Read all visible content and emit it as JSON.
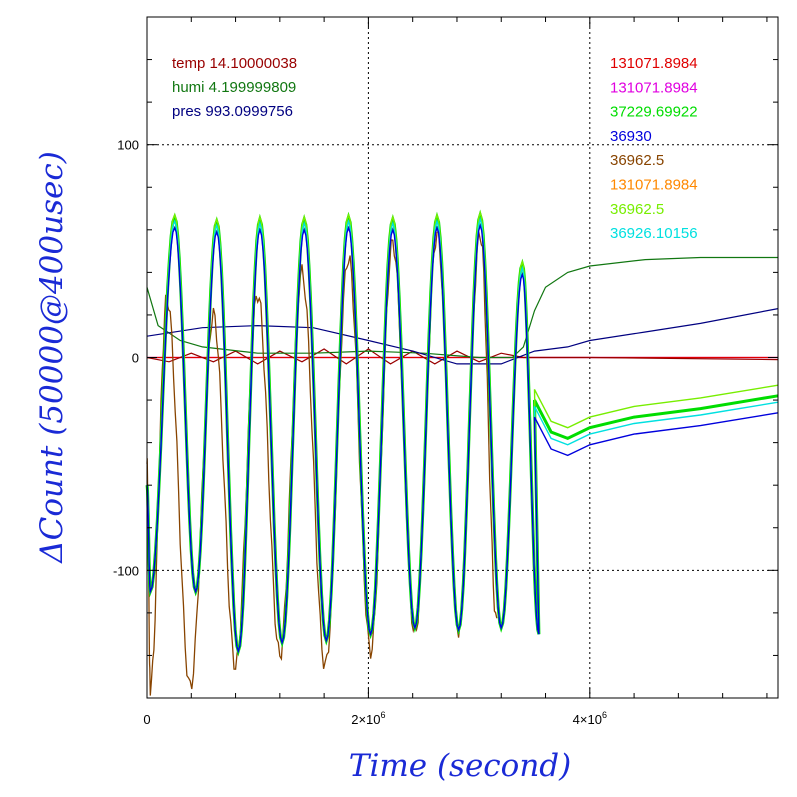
{
  "chart_data": {
    "type": "line",
    "xlabel": "Time (second)",
    "ylabel": "ΔCount (50000@400usec)",
    "xlim": [
      0,
      5700000
    ],
    "ylim": [
      -160,
      160
    ],
    "x_ticks": [
      {
        "value": 0,
        "base": "0",
        "exp": ""
      },
      {
        "value": 2000000,
        "base": "2×10",
        "exp": "6"
      },
      {
        "value": 4000000,
        "base": "4×10",
        "exp": "6"
      }
    ],
    "y_ticks": [
      {
        "value": 100,
        "label": "100"
      },
      {
        "value": 0,
        "label": "0"
      },
      {
        "value": -100,
        "label": "-100"
      }
    ],
    "grid": {
      "x": [
        2000000,
        4000000
      ],
      "y": [
        100,
        -100
      ]
    },
    "env_legend": [
      {
        "label": "temp 14.10000038",
        "color": "#990000"
      },
      {
        "label": "humi 4.199999809",
        "color": "#117711"
      },
      {
        "label": "pres 993.0999756",
        "color": "#000080"
      }
    ],
    "channel_legend": [
      {
        "label": "131071.8984",
        "color": "#e00000"
      },
      {
        "label": "131071.8984",
        "color": "#e000e0"
      },
      {
        "label": "37229.69922",
        "color": "#00dd00"
      },
      {
        "label": "36930",
        "color": "#0000dd"
      },
      {
        "label": "36962.5",
        "color": "#884400"
      },
      {
        "label": "131071.8984",
        "color": "#ff8800"
      },
      {
        "label": "36962.5",
        "color": "#77ee00"
      },
      {
        "label": "36926.10156",
        "color": "#00e0e0"
      }
    ],
    "series": [
      {
        "color": "#e000e0",
        "x": [
          0,
          5700000
        ],
        "y": [
          0,
          0
        ]
      },
      {
        "color": "#e00000",
        "x": [
          0,
          5700000
        ],
        "y": [
          0,
          0
        ]
      },
      {
        "color": "#990000",
        "x": [
          0,
          200000,
          400000,
          600000,
          800000,
          1000000,
          1200000,
          1400000,
          1600000,
          1800000,
          2000000,
          2200000,
          2400000,
          2600000,
          2800000,
          3000000,
          3200000,
          3400000,
          3600000,
          4000000,
          5700000
        ],
        "y": [
          0,
          -2,
          2,
          -2,
          3,
          -3,
          3,
          -2,
          4,
          -3,
          4,
          -3,
          3,
          -3,
          3,
          -2,
          2,
          0,
          0,
          0,
          -1
        ]
      },
      {
        "color": "#117711",
        "x": [
          0,
          100000,
          300000,
          500000,
          1000000,
          1500000,
          2000000,
          2500000,
          3000000,
          3300000,
          3400000,
          3500000,
          3600000,
          3800000,
          4000000,
          4500000,
          5000000,
          5700000
        ],
        "y": [
          33,
          15,
          8,
          5,
          2,
          2,
          3,
          2,
          0,
          0,
          5,
          22,
          33,
          40,
          43,
          46,
          47,
          47
        ]
      },
      {
        "color": "#000080",
        "x": [
          0,
          500000,
          1000000,
          1500000,
          2000000,
          2400000,
          2800000,
          3200000,
          3500000,
          3800000,
          4000000,
          4500000,
          5000000,
          5700000
        ],
        "y": [
          10,
          14,
          15,
          14,
          8,
          3,
          -3,
          -3,
          3,
          5,
          8,
          12,
          16,
          23
        ]
      }
    ],
    "oscillation": {
      "description_free": true,
      "peaks": [
        {
          "x": 250000,
          "hi": 64,
          "lo": -110
        },
        {
          "x": 630000,
          "hi": 62,
          "lo": -138
        },
        {
          "x": 1020000,
          "hi": 63,
          "lo": -134
        },
        {
          "x": 1420000,
          "hi": 63,
          "lo": -133
        },
        {
          "x": 1820000,
          "hi": 64,
          "lo": -130
        },
        {
          "x": 2220000,
          "hi": 63,
          "lo": -127
        },
        {
          "x": 2620000,
          "hi": 64,
          "lo": -128
        },
        {
          "x": 3010000,
          "hi": 65,
          "lo": -127
        },
        {
          "x": 3390000,
          "hi": 42,
          "lo": -130
        }
      ],
      "tail": [
        {
          "x": 3500000,
          "y": -20
        },
        {
          "x": 3650000,
          "y": -35
        },
        {
          "x": 3800000,
          "y": -38
        },
        {
          "x": 4000000,
          "y": -33
        },
        {
          "x": 4400000,
          "y": -28
        },
        {
          "x": 5000000,
          "y": -24
        },
        {
          "x": 5700000,
          "y": -18
        }
      ]
    },
    "channels_osc": [
      {
        "color": "#00dd00",
        "dy": 2,
        "tail_dy": 0
      },
      {
        "color": "#77ee00",
        "dy": 3,
        "tail_dy": 5
      },
      {
        "color": "#00e0e0",
        "dy": 0,
        "tail_dy": -3
      },
      {
        "color": "#0000dd",
        "dy": -3,
        "tail_dy": -8
      }
    ],
    "brown_peaks": [
      {
        "x": 180000,
        "hi": 28,
        "lo": -155
      },
      {
        "x": 600000,
        "hi": 20,
        "lo": -145
      },
      {
        "x": 1000000,
        "hi": 30,
        "lo": -140
      },
      {
        "x": 1400000,
        "hi": 40,
        "lo": -145
      },
      {
        "x": 1820000,
        "hi": 47,
        "lo": -138
      },
      {
        "x": 2220000,
        "hi": 54,
        "lo": -130
      },
      {
        "x": 2620000,
        "hi": 58,
        "lo": -128
      },
      {
        "x": 3010000,
        "hi": 58,
        "lo": -125
      }
    ]
  }
}
